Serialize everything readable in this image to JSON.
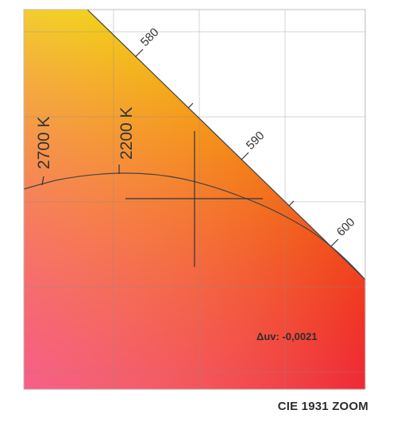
{
  "caption": "CIE 1931 ZOOM",
  "chart_data": {
    "type": "chromaticity-diagram",
    "title": "",
    "xlabel": "",
    "ylabel": "",
    "grid": true,
    "region_colors": {
      "yellow": "#f2e41c",
      "orange": "#f59a1a",
      "red": "#ee1c25",
      "pink": "#f65d8e"
    },
    "spectral_locus_ticks": [
      {
        "wavelength_nm": 580,
        "label": "580"
      },
      {
        "wavelength_nm": 585,
        "label": ""
      },
      {
        "wavelength_nm": 590,
        "label": "590"
      },
      {
        "wavelength_nm": 595,
        "label": ""
      },
      {
        "wavelength_nm": 600,
        "label": "600"
      }
    ],
    "planckian_locus_ticks": [
      {
        "cct_k": 2700,
        "label": "2700 K"
      },
      {
        "cct_k": 2200,
        "label": "2200 K"
      }
    ],
    "measured_point": {
      "duv_label": "Δuv: -0,0021",
      "duv": -0.0021
    }
  }
}
